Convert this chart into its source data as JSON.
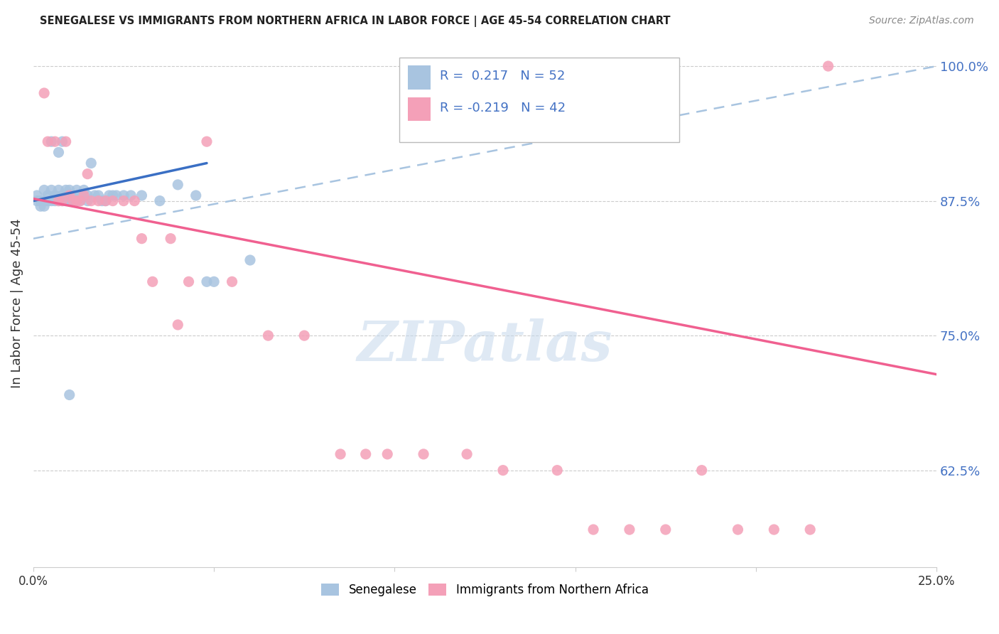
{
  "title": "SENEGALESE VS IMMIGRANTS FROM NORTHERN AFRICA IN LABOR FORCE | AGE 45-54 CORRELATION CHART",
  "source": "Source: ZipAtlas.com",
  "ylabel": "In Labor Force | Age 45-54",
  "xlim": [
    0.0,
    0.25
  ],
  "ylim": [
    0.535,
    1.025
  ],
  "yticks": [
    0.625,
    0.75,
    0.875,
    1.0
  ],
  "ytick_labels": [
    "62.5%",
    "75.0%",
    "87.5%",
    "100.0%"
  ],
  "xticks": [
    0.0,
    0.05,
    0.1,
    0.15,
    0.2,
    0.25
  ],
  "xtick_labels": [
    "0.0%",
    "",
    "",
    "",
    "",
    "25.0%"
  ],
  "blue_R": 0.217,
  "blue_N": 52,
  "pink_R": -0.219,
  "pink_N": 42,
  "blue_color": "#a8c4e0",
  "pink_color": "#f4a0b8",
  "blue_line_color": "#3a6fc4",
  "pink_line_color": "#f06090",
  "dashed_line_color": "#a8c4e0",
  "watermark": "ZIPatlas",
  "blue_line_x0": 0.0,
  "blue_line_y0": 0.875,
  "blue_line_x1": 0.048,
  "blue_line_y1": 0.91,
  "dashed_line_x0": 0.0,
  "dashed_line_y0": 0.84,
  "dashed_line_x1": 0.25,
  "dashed_line_y1": 1.0,
  "pink_line_x0": 0.0,
  "pink_line_y0": 0.877,
  "pink_line_x1": 0.25,
  "pink_line_y1": 0.714,
  "blue_points_x": [
    0.001,
    0.001,
    0.002,
    0.002,
    0.003,
    0.003,
    0.003,
    0.004,
    0.004,
    0.005,
    0.005,
    0.005,
    0.006,
    0.006,
    0.007,
    0.007,
    0.007,
    0.008,
    0.008,
    0.008,
    0.009,
    0.009,
    0.01,
    0.01,
    0.01,
    0.011,
    0.011,
    0.012,
    0.012,
    0.013,
    0.013,
    0.014,
    0.015,
    0.015,
    0.016,
    0.017,
    0.018,
    0.019,
    0.02,
    0.021,
    0.022,
    0.023,
    0.025,
    0.027,
    0.03,
    0.035,
    0.04,
    0.045,
    0.048,
    0.05,
    0.06,
    0.01
  ],
  "blue_points_y": [
    0.875,
    0.88,
    0.875,
    0.87,
    0.875,
    0.885,
    0.87,
    0.875,
    0.88,
    0.875,
    0.885,
    0.93,
    0.875,
    0.88,
    0.875,
    0.885,
    0.92,
    0.875,
    0.88,
    0.93,
    0.875,
    0.885,
    0.875,
    0.88,
    0.885,
    0.875,
    0.88,
    0.875,
    0.885,
    0.875,
    0.88,
    0.885,
    0.875,
    0.88,
    0.91,
    0.88,
    0.88,
    0.875,
    0.875,
    0.88,
    0.88,
    0.88,
    0.88,
    0.88,
    0.88,
    0.875,
    0.89,
    0.88,
    0.8,
    0.8,
    0.82,
    0.695
  ],
  "pink_points_x": [
    0.003,
    0.004,
    0.006,
    0.007,
    0.008,
    0.009,
    0.01,
    0.011,
    0.012,
    0.013,
    0.014,
    0.015,
    0.016,
    0.018,
    0.02,
    0.022,
    0.025,
    0.028,
    0.03,
    0.033,
    0.038,
    0.04,
    0.043,
    0.048,
    0.055,
    0.065,
    0.075,
    0.085,
    0.092,
    0.098,
    0.108,
    0.12,
    0.13,
    0.145,
    0.155,
    0.165,
    0.175,
    0.185,
    0.195,
    0.205,
    0.215,
    0.22
  ],
  "pink_points_y": [
    0.975,
    0.93,
    0.93,
    0.875,
    0.875,
    0.93,
    0.88,
    0.875,
    0.875,
    0.875,
    0.88,
    0.9,
    0.875,
    0.875,
    0.875,
    0.875,
    0.875,
    0.875,
    0.84,
    0.8,
    0.84,
    0.76,
    0.8,
    0.93,
    0.8,
    0.75,
    0.75,
    0.64,
    0.64,
    0.64,
    0.64,
    0.64,
    0.625,
    0.625,
    0.57,
    0.57,
    0.57,
    0.625,
    0.57,
    0.57,
    0.57,
    1.0
  ]
}
